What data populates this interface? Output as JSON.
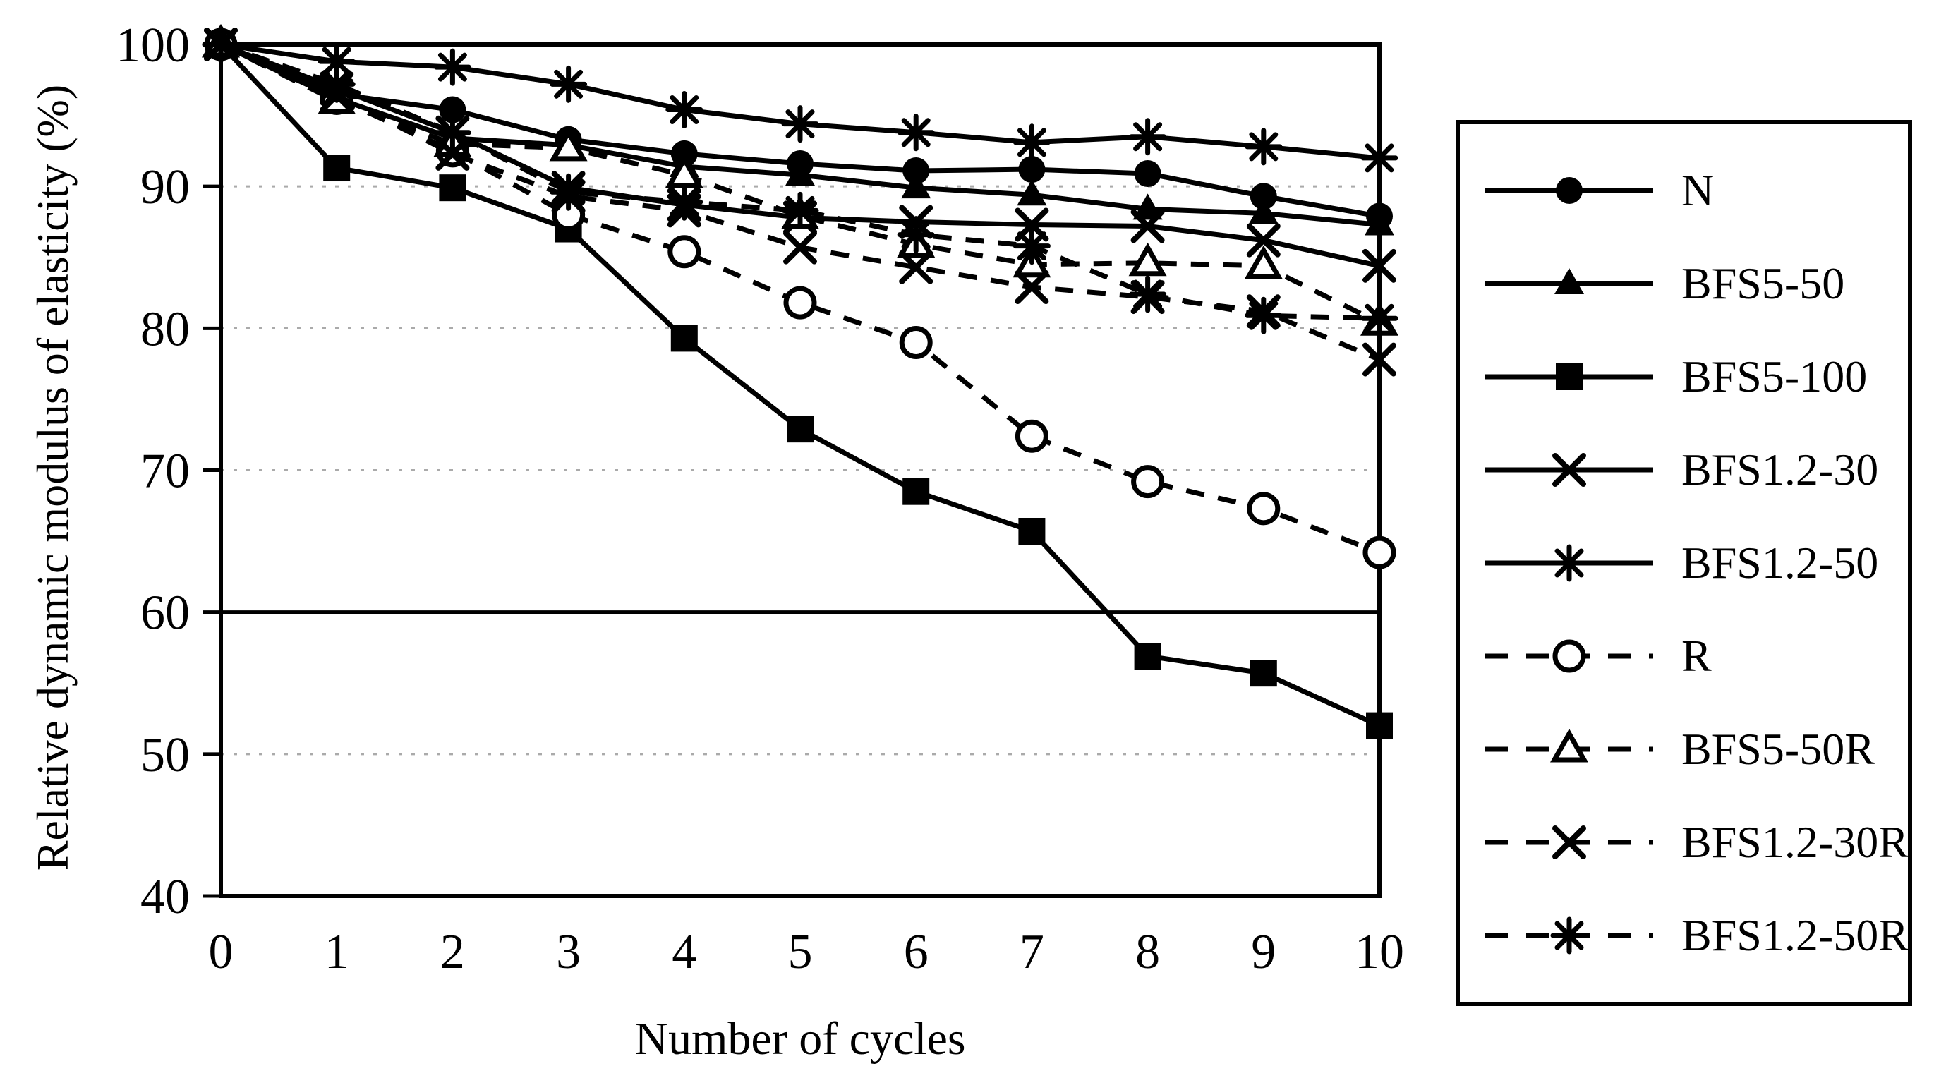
{
  "figure_type": "scientific line chart, black and white",
  "colors": {
    "foreground": "#000000",
    "background": "#ffffff",
    "gridline": "#aaaaaa"
  },
  "chart_data": {
    "type": "line",
    "title": "",
    "xlabel": "Number of cycles",
    "ylabel": "Relative dynamic modulus of elasticity (%)",
    "x": [
      0,
      1,
      2,
      3,
      4,
      5,
      6,
      7,
      8,
      9,
      10
    ],
    "xlim": [
      0,
      10
    ],
    "ylim": [
      40,
      100
    ],
    "xticks": [
      0,
      1,
      2,
      3,
      4,
      5,
      6,
      7,
      8,
      9,
      10
    ],
    "yticks": [
      40,
      50,
      60,
      70,
      80,
      90,
      100
    ],
    "grid_dotted_at": [
      50,
      70,
      80,
      90
    ],
    "grid_solid_at": [
      60
    ],
    "legend_position": "right",
    "series": [
      {
        "name": "N",
        "line": "solid",
        "marker": "filled-circle",
        "values": [
          100,
          96.5,
          95.4,
          93.3,
          92.3,
          91.6,
          91.1,
          91.2,
          90.9,
          89.3,
          87.9
        ]
      },
      {
        "name": "BFS5-50",
        "line": "solid",
        "marker": "filled-triangle",
        "values": [
          100,
          96.2,
          93.4,
          92.9,
          91.4,
          90.8,
          89.9,
          89.4,
          88.4,
          88.1,
          87.3
        ]
      },
      {
        "name": "BFS5-100",
        "line": "solid",
        "marker": "filled-square",
        "values": [
          100,
          91.3,
          89.9,
          87.0,
          79.3,
          72.9,
          68.5,
          65.7,
          56.9,
          55.7,
          52.0
        ]
      },
      {
        "name": "BFS1.2-30",
        "line": "solid",
        "marker": "x-cross",
        "values": [
          100,
          96.9,
          93.8,
          89.9,
          88.7,
          87.8,
          87.5,
          87.3,
          87.2,
          86.2,
          84.4
        ]
      },
      {
        "name": "BFS1.2-50",
        "line": "solid",
        "marker": "asterisk",
        "values": [
          100,
          98.8,
          98.4,
          97.2,
          95.4,
          94.4,
          93.8,
          93.1,
          93.5,
          92.8,
          92.0
        ]
      },
      {
        "name": "R",
        "line": "dashed",
        "marker": "open-circle",
        "values": [
          100,
          96.2,
          92.5,
          88.0,
          85.4,
          81.8,
          79.0,
          72.4,
          69.2,
          67.3,
          64.2
        ]
      },
      {
        "name": "BFS5-50R",
        "line": "dashed",
        "marker": "open-triangle",
        "values": [
          100,
          96.0,
          93.0,
          92.7,
          90.8,
          87.9,
          85.9,
          84.5,
          84.6,
          84.4,
          80.4
        ]
      },
      {
        "name": "BFS1.2-30R",
        "line": "dashed",
        "marker": "x-cross",
        "values": [
          100,
          96.4,
          92.3,
          89.3,
          88.3,
          85.7,
          84.3,
          82.9,
          82.2,
          81.2,
          77.8
        ]
      },
      {
        "name": "BFS1.2-50R",
        "line": "dashed",
        "marker": "asterisk",
        "values": [
          100,
          97.2,
          93.8,
          89.6,
          88.9,
          88.3,
          86.6,
          85.8,
          82.4,
          80.9,
          80.7
        ]
      }
    ]
  }
}
